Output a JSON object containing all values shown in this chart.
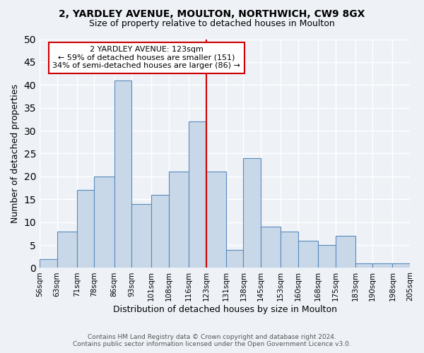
{
  "title": "2, YARDLEY AVENUE, MOULTON, NORTHWICH, CW9 8GX",
  "subtitle": "Size of property relative to detached houses in Moulton",
  "xlabel": "Distribution of detached houses by size in Moulton",
  "ylabel": "Number of detached properties",
  "bins": [
    56,
    63,
    71,
    78,
    86,
    93,
    101,
    108,
    116,
    123,
    131,
    138,
    145,
    153,
    160,
    168,
    175,
    183,
    190,
    198,
    205
  ],
  "counts": [
    2,
    8,
    17,
    20,
    41,
    14,
    16,
    21,
    32,
    21,
    4,
    24,
    9,
    8,
    6,
    5,
    7,
    1,
    1,
    1
  ],
  "bar_color": "#c8d8e8",
  "bar_edge_color": "#5a8abf",
  "vline_x": 123,
  "vline_color": "#cc0000",
  "ylim": [
    0,
    50
  ],
  "yticks": [
    0,
    5,
    10,
    15,
    20,
    25,
    30,
    35,
    40,
    45,
    50
  ],
  "annotation_title": "2 YARDLEY AVENUE: 123sqm",
  "annotation_line1": "← 59% of detached houses are smaller (151)",
  "annotation_line2": "34% of semi-detached houses are larger (86) →",
  "annotation_box_color": "#ffffff",
  "annotation_box_edge_color": "#cc0000",
  "footer1": "Contains HM Land Registry data © Crown copyright and database right 2024.",
  "footer2": "Contains public sector information licensed under the Open Government Licence v3.0.",
  "background_color": "#eef2f7",
  "grid_color": "#ffffff"
}
